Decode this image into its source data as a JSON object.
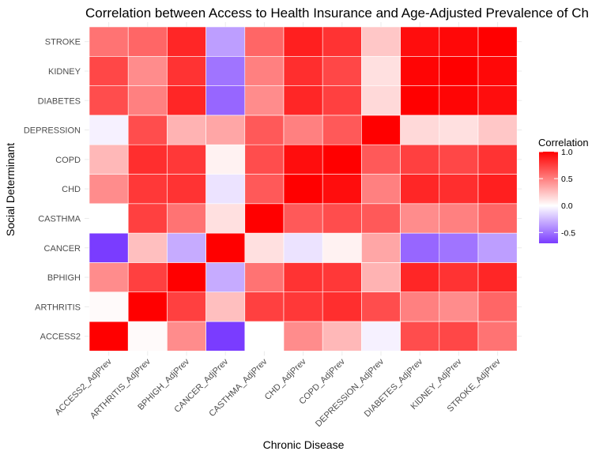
{
  "chart_data": {
    "type": "heatmap",
    "title": "Correlation between Access to Health Insurance and Age-Adjusted Prevalence of Ch",
    "xlabel": "Chronic Disease",
    "ylabel": "Social Determinant",
    "x_categories": [
      "ACCESS2_AdjPrev",
      "ARTHRITIS_AdjPrev",
      "BPHIGH_AdjPrev",
      "CANCER_AdjPrev",
      "CASTHMA_AdjPrev",
      "CHD_AdjPrev",
      "COPD_AdjPrev",
      "DEPRESSION_AdjPrev",
      "DIABETES_AdjPrev",
      "KIDNEY_AdjPrev",
      "STROKE_AdjPrev"
    ],
    "y_categories": [
      "ACCESS2",
      "ARTHRITIS",
      "BPHIGH",
      "CANCER",
      "CASTHMA",
      "CHD",
      "COPD",
      "DEPRESSION",
      "DIABETES",
      "KIDNEY",
      "STROKE"
    ],
    "values": [
      [
        1.0,
        0.02,
        0.45,
        -0.7,
        0.0,
        0.45,
        0.28,
        -0.05,
        0.7,
        0.72,
        0.55
      ],
      [
        0.02,
        1.0,
        0.75,
        0.25,
        0.75,
        0.78,
        0.82,
        0.7,
        0.5,
        0.45,
        0.6
      ],
      [
        0.45,
        0.75,
        1.0,
        -0.3,
        0.55,
        0.8,
        0.78,
        0.3,
        0.85,
        0.8,
        0.85
      ],
      [
        -0.7,
        0.25,
        -0.3,
        1.0,
        0.12,
        -0.1,
        0.05,
        0.35,
        -0.55,
        -0.5,
        -0.35
      ],
      [
        0.0,
        0.75,
        0.55,
        0.12,
        1.0,
        0.65,
        0.7,
        0.65,
        0.45,
        0.5,
        0.6
      ],
      [
        0.45,
        0.78,
        0.8,
        -0.1,
        0.65,
        1.0,
        0.95,
        0.5,
        0.85,
        0.82,
        0.88
      ],
      [
        0.28,
        0.82,
        0.78,
        0.05,
        0.7,
        0.95,
        1.0,
        0.65,
        0.75,
        0.72,
        0.8
      ],
      [
        -0.05,
        0.7,
        0.3,
        0.35,
        0.65,
        0.5,
        0.65,
        1.0,
        0.15,
        0.12,
        0.22
      ],
      [
        0.7,
        0.5,
        0.85,
        -0.55,
        0.45,
        0.85,
        0.75,
        0.15,
        1.0,
        0.98,
        0.95
      ],
      [
        0.72,
        0.45,
        0.8,
        -0.5,
        0.5,
        0.82,
        0.72,
        0.12,
        0.98,
        1.0,
        0.97
      ],
      [
        0.55,
        0.6,
        0.85,
        -0.35,
        0.6,
        0.88,
        0.8,
        0.22,
        0.95,
        0.97,
        1.0
      ]
    ],
    "legend": {
      "title": "Correlation",
      "ticks": [
        "1.0",
        "0.5",
        "0.0",
        "-0.5"
      ],
      "range": [
        -0.7,
        1.0
      ],
      "position": "right"
    },
    "colors": {
      "low": "#7a3cff",
      "mid": "#ffffff",
      "high": "#ff0000"
    },
    "grid": true
  }
}
